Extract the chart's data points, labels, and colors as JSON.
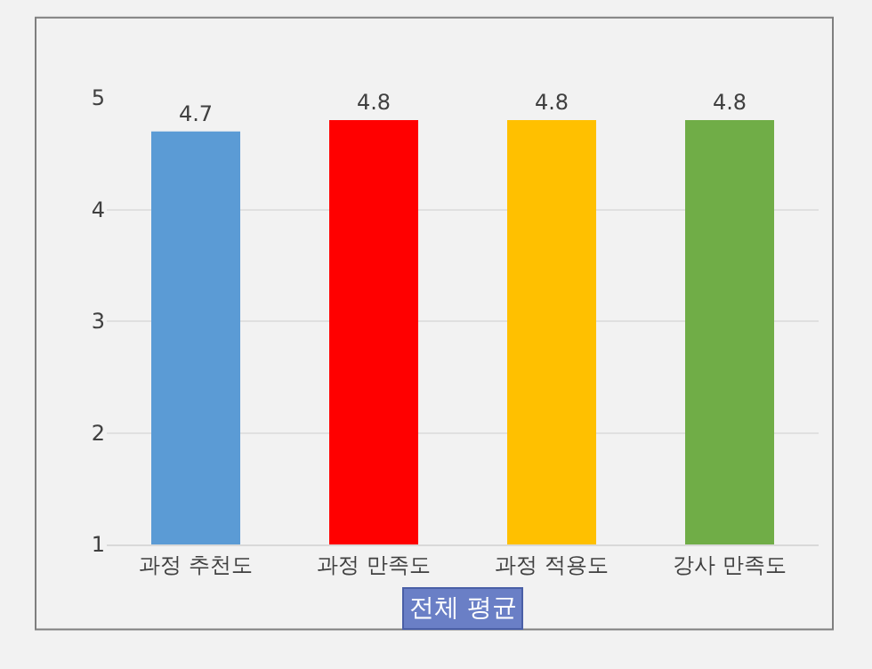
{
  "chart_data": {
    "type": "bar",
    "categories": [
      "과정 추천도",
      "과정 만족도",
      "과정 적용도",
      "강사 만족도"
    ],
    "values": [
      4.7,
      4.8,
      4.8,
      4.8
    ],
    "colors": [
      "#5b9bd5",
      "#ff0000",
      "#ffc000",
      "#70ad47"
    ],
    "ylim": [
      1,
      5
    ],
    "yticks": [
      1,
      2,
      3,
      4,
      5
    ],
    "grid": "y",
    "data_labels": true,
    "annotations": [
      "전체 평균"
    ]
  }
}
